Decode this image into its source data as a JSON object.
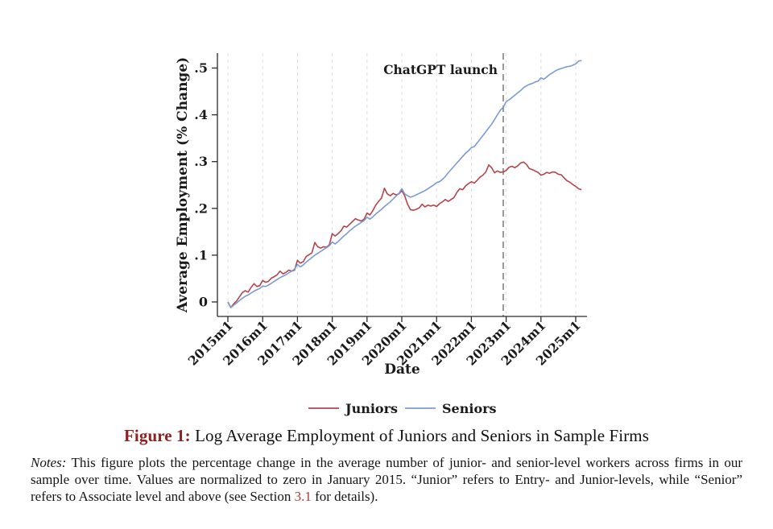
{
  "chart_data": {
    "type": "line",
    "xlabel": "Date",
    "ylabel": "Average Employment (% Change)",
    "x_unit": "months since 2015m1",
    "x_tick_labels": [
      "2015m1",
      "2016m1",
      "2017m1",
      "2018m1",
      "2019m1",
      "2020m1",
      "2021m1",
      "2022m1",
      "2023m1",
      "2024m1",
      "2025m1"
    ],
    "x_tick_month_indices": [
      0,
      12,
      24,
      36,
      48,
      60,
      72,
      84,
      96,
      108,
      120
    ],
    "y_tick_labels": [
      "0",
      ".1",
      ".2",
      ".3",
      ".4",
      ".5"
    ],
    "y_tick_values": [
      0,
      0.1,
      0.2,
      0.3,
      0.4,
      0.5
    ],
    "ylim": [
      -0.031,
      0.535
    ],
    "grid": "vertical-dashed-yearly",
    "legend_position": "bottom-center",
    "annotation": {
      "label": "ChatGPT launch",
      "month_index": 95,
      "x": "2022m12",
      "line_color": "#6e6e6e",
      "label_color": "#949494"
    },
    "series": [
      {
        "name": "Juniors",
        "color": "#b5444b",
        "values": [
          0.0,
          -0.012,
          -0.004,
          0.002,
          0.011,
          0.02,
          0.024,
          0.021,
          0.031,
          0.039,
          0.033,
          0.035,
          0.046,
          0.042,
          0.044,
          0.051,
          0.054,
          0.058,
          0.066,
          0.06,
          0.063,
          0.068,
          0.066,
          0.068,
          0.089,
          0.083,
          0.086,
          0.097,
          0.101,
          0.105,
          0.127,
          0.118,
          0.115,
          0.118,
          0.117,
          0.122,
          0.146,
          0.141,
          0.146,
          0.152,
          0.162,
          0.16,
          0.166,
          0.172,
          0.178,
          0.175,
          0.173,
          0.177,
          0.19,
          0.186,
          0.195,
          0.207,
          0.215,
          0.222,
          0.243,
          0.231,
          0.227,
          0.232,
          0.229,
          0.231,
          0.238,
          0.227,
          0.209,
          0.197,
          0.196,
          0.198,
          0.201,
          0.209,
          0.203,
          0.207,
          0.205,
          0.207,
          0.204,
          0.21,
          0.214,
          0.219,
          0.215,
          0.219,
          0.223,
          0.234,
          0.242,
          0.24,
          0.248,
          0.253,
          0.257,
          0.254,
          0.26,
          0.267,
          0.271,
          0.278,
          0.293,
          0.287,
          0.276,
          0.28,
          0.277,
          0.278,
          0.281,
          0.288,
          0.29,
          0.287,
          0.291,
          0.297,
          0.299,
          0.294,
          0.285,
          0.283,
          0.28,
          0.277,
          0.271,
          0.273,
          0.277,
          0.275,
          0.278,
          0.277,
          0.273,
          0.272,
          0.265,
          0.259,
          0.256,
          0.251,
          0.247,
          0.242,
          0.24
        ]
      },
      {
        "name": "Seniors",
        "color": "#7b9bd2",
        "values": [
          0.0,
          -0.012,
          -0.007,
          -0.002,
          0.003,
          0.008,
          0.012,
          0.015,
          0.019,
          0.023,
          0.026,
          0.029,
          0.034,
          0.033,
          0.036,
          0.04,
          0.044,
          0.048,
          0.052,
          0.055,
          0.058,
          0.062,
          0.066,
          0.07,
          0.08,
          0.075,
          0.079,
          0.085,
          0.09,
          0.095,
          0.1,
          0.104,
          0.108,
          0.112,
          0.116,
          0.12,
          0.128,
          0.124,
          0.129,
          0.135,
          0.141,
          0.146,
          0.152,
          0.157,
          0.162,
          0.166,
          0.17,
          0.174,
          0.181,
          0.177,
          0.182,
          0.188,
          0.193,
          0.198,
          0.204,
          0.209,
          0.214,
          0.22,
          0.226,
          0.232,
          0.242,
          0.231,
          0.227,
          0.224,
          0.226,
          0.229,
          0.232,
          0.235,
          0.238,
          0.242,
          0.246,
          0.25,
          0.255,
          0.257,
          0.262,
          0.268,
          0.276,
          0.283,
          0.29,
          0.297,
          0.304,
          0.311,
          0.318,
          0.323,
          0.33,
          0.332,
          0.34,
          0.348,
          0.356,
          0.364,
          0.372,
          0.38,
          0.39,
          0.4,
          0.41,
          0.416,
          0.428,
          0.432,
          0.437,
          0.442,
          0.447,
          0.452,
          0.458,
          0.462,
          0.465,
          0.467,
          0.47,
          0.472,
          0.479,
          0.476,
          0.481,
          0.486,
          0.49,
          0.494,
          0.497,
          0.499,
          0.501,
          0.503,
          0.504,
          0.506,
          0.509,
          0.515,
          0.516
        ]
      }
    ]
  },
  "caption": {
    "label": "Figure 1:",
    "text": " Log Average Employment of Juniors and Seniors in Sample Firms"
  },
  "notes": {
    "label": "Notes:",
    "body": " This figure plots the percentage change in the average number of junior- and senior-level workers across firms in our sample over time. Values are normalized to zero in January 2015. “Junior” refers to Entry- and Junior-levels, while “Senior” refers to Associate level and above (see Section ",
    "link": "3.1",
    "tail": " for details)."
  },
  "colors": {
    "juniors_line": "#b5444b",
    "seniors_line": "#7b9bd2",
    "gridline": "#e2e2e2",
    "axis": "#2a2a2a",
    "annotation_line": "#6e6e6e",
    "annotation_label": "#949494",
    "caption_label": "#8d2223",
    "section_link": "#b53a33"
  }
}
